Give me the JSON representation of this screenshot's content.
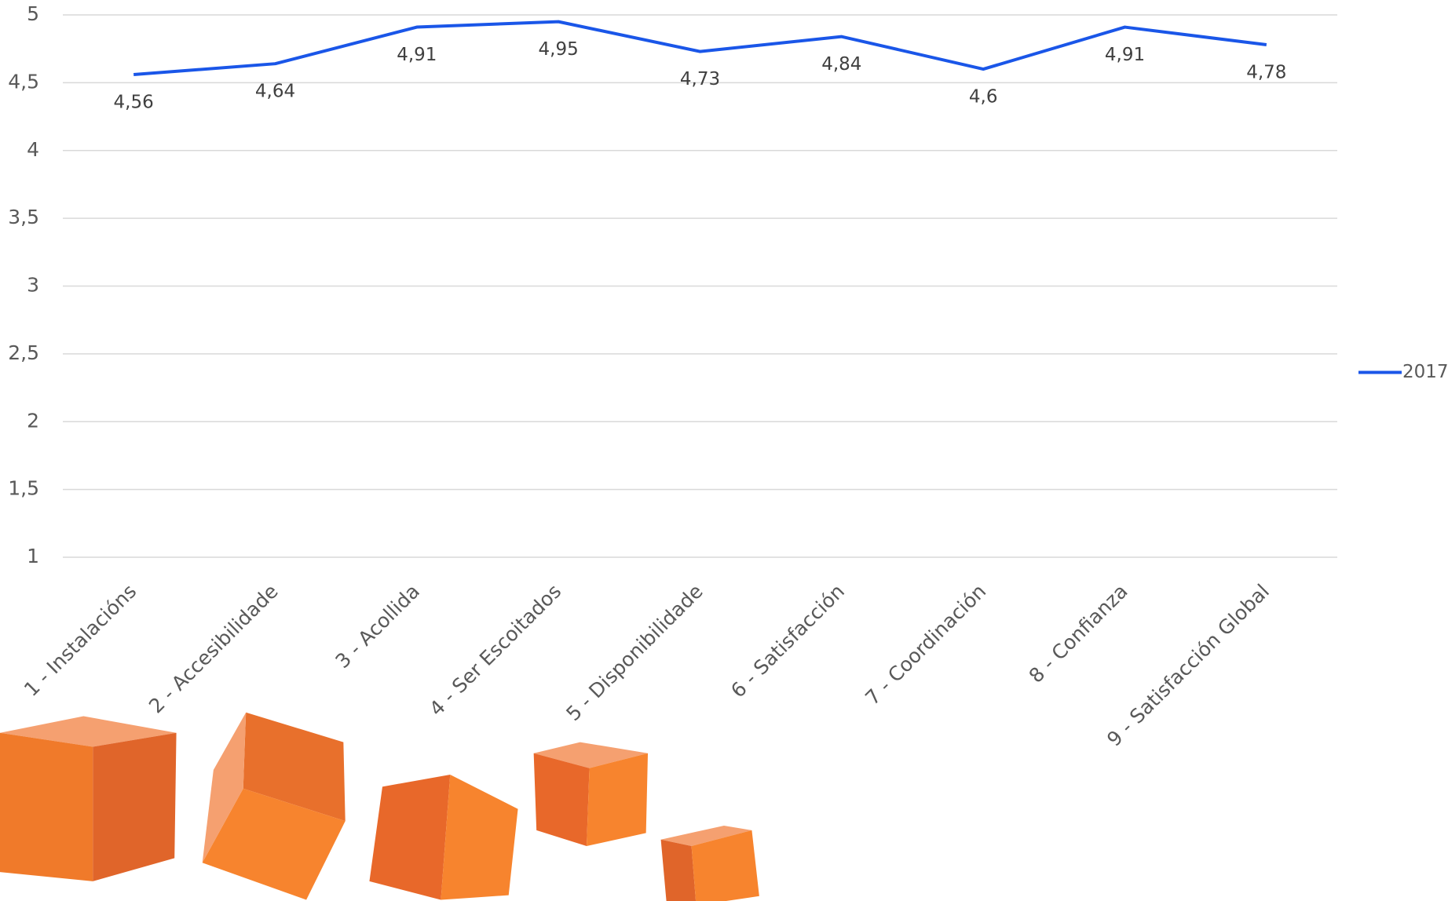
{
  "chart_data": {
    "type": "line",
    "categories": [
      "1 - Instalacións",
      "2 - Accesibilidade",
      "3 - Acollida",
      "4 - Ser Escoitados",
      "5 - Disponibilidade",
      "6 - Satisfacción",
      "7 - Coordinación",
      "8 - Confianza",
      "9 - Satisfacción Global"
    ],
    "series": [
      {
        "name": "2017",
        "color": "#1a56e8",
        "values": [
          4.56,
          4.64,
          4.91,
          4.95,
          4.73,
          4.84,
          4.6,
          4.91,
          4.78
        ],
        "value_labels": [
          "4,56",
          "4,64",
          "4,91",
          "4,95",
          "4,73",
          "4,84",
          "4,6",
          "4,91",
          "4,78"
        ]
      }
    ],
    "ylim": [
      1,
      5
    ],
    "yticks": [
      1,
      {
        "value": 1.5,
        "label": "1,5"
      },
      2,
      {
        "value": 2.5,
        "label": "2,5"
      },
      3,
      {
        "value": 3.5,
        "label": "3,5"
      },
      4,
      {
        "value": 4.5,
        "label": "4,5"
      },
      5
    ],
    "grid": true,
    "legend": "right"
  }
}
